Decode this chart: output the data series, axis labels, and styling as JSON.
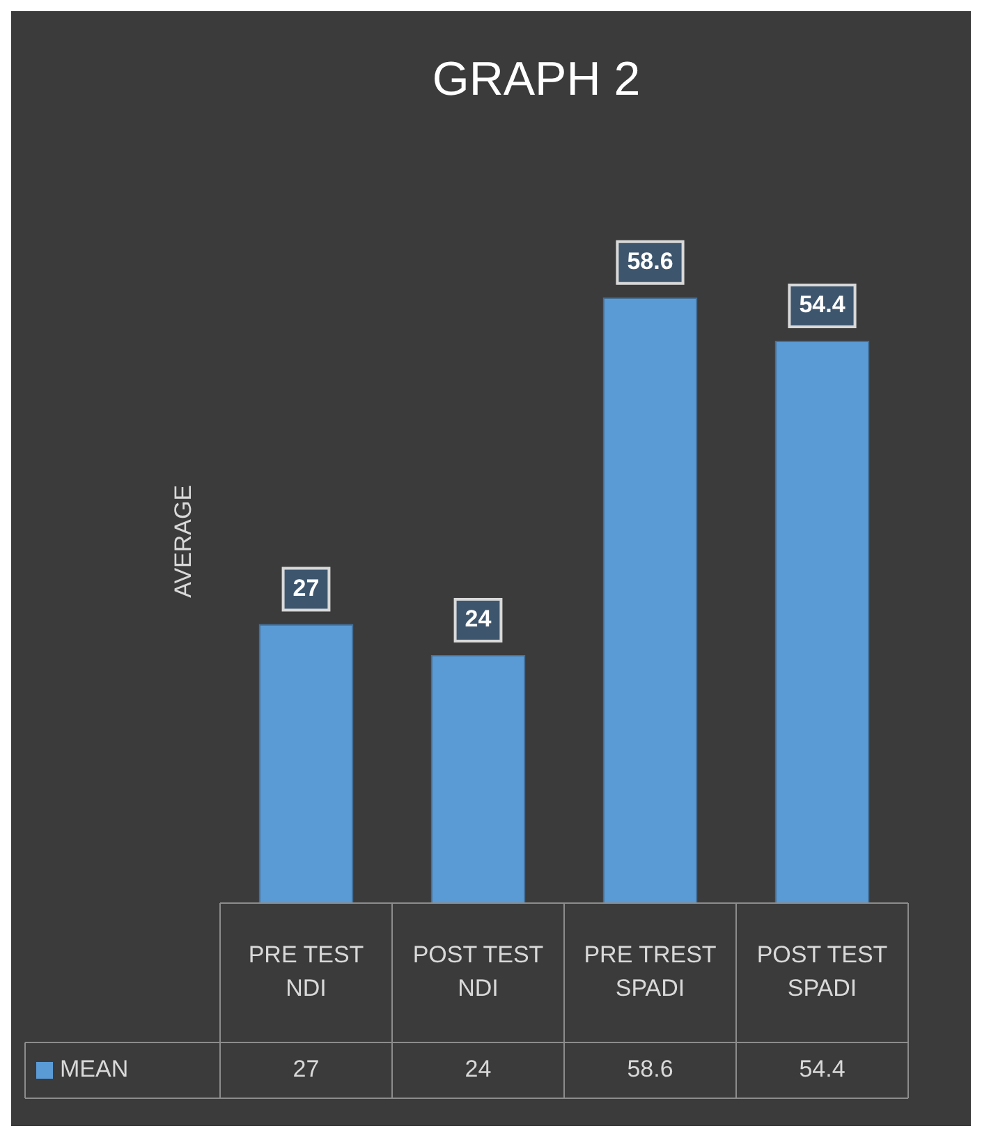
{
  "chart_data": {
    "type": "bar",
    "title": "GRAPH 2",
    "ylabel": "AVERAGE",
    "categories": [
      "PRE TEST NDI",
      "POST TEST NDI",
      "PRE TREST SPADI",
      "POST TEST SPADI"
    ],
    "series": [
      {
        "name": "MEAN",
        "color": "#5b9bd5",
        "values": [
          27,
          24,
          58.6,
          54.4
        ]
      }
    ],
    "annotations": [
      "27",
      "24",
      "58.6",
      "54.4"
    ],
    "data_labels": true,
    "legend": "bottom",
    "grid": false
  }
}
